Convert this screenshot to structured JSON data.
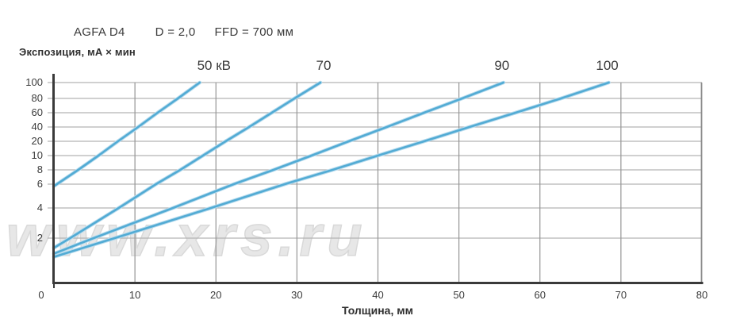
{
  "header": {
    "film": "AGFA D4",
    "density": "D = 2,0",
    "ffd": "FFD = 700 мм"
  },
  "y_axis": {
    "title": "Экспозиция, мА × мин",
    "ticks": [
      100,
      80,
      60,
      40,
      20,
      10,
      8,
      6,
      4,
      2
    ]
  },
  "x_axis": {
    "title": "Толщина, мм",
    "ticks": [
      0,
      10,
      20,
      30,
      40,
      50,
      60,
      70,
      80
    ]
  },
  "watermark": "www.xrs.ru",
  "colors": {
    "curve": "#52abd4",
    "curve_halo": "#b9dcee",
    "axis": "#3a3a3a",
    "grid_h": "#b3b3b3",
    "grid_v": "#969696",
    "plot_right_border": "#8a8a8a",
    "text": "#3b3b3b",
    "watermark": "#e7e7e7"
  },
  "chart_data": {
    "type": "line",
    "title": "AGFA D4 exposure chart (D = 2,0, FFD = 700 мм)",
    "xlabel": "Толщина, мм",
    "ylabel": "Экспозиция, мА × мин",
    "x_range": [
      0,
      80
    ],
    "y_ticks": [
      100,
      80,
      60,
      40,
      20,
      10,
      8,
      6,
      4,
      2
    ],
    "y_scale": "pseudo-log (ticks 100..10 evenly spaced, wider below 10)",
    "grid": true,
    "legend_position": "labels above plot at each curve's top exit",
    "series": [
      {
        "name": "50 кВ",
        "points": [
          [
            0,
            5.8
          ],
          [
            3,
            8
          ],
          [
            5.5,
            10
          ],
          [
            7.9,
            20
          ],
          [
            10.4,
            40
          ],
          [
            12.8,
            60
          ],
          [
            15.3,
            80
          ],
          [
            18,
            100
          ]
        ]
      },
      {
        "name": "70",
        "points": [
          [
            0,
            1.6
          ],
          [
            2,
            2
          ],
          [
            8,
            4
          ],
          [
            12.6,
            6
          ],
          [
            15.6,
            8
          ],
          [
            18.4,
            10
          ],
          [
            21.2,
            20
          ],
          [
            24.1,
            40
          ],
          [
            26.9,
            60
          ],
          [
            29.7,
            80
          ],
          [
            32.9,
            100
          ]
        ]
      },
      {
        "name": "90",
        "points": [
          [
            0,
            1.4
          ],
          [
            4.9,
            2
          ],
          [
            14.7,
            4
          ],
          [
            22.2,
            6
          ],
          [
            27.1,
            8
          ],
          [
            31.8,
            10
          ],
          [
            36.4,
            20
          ],
          [
            41.1,
            40
          ],
          [
            45.7,
            60
          ],
          [
            50.4,
            80
          ],
          [
            55.5,
            100
          ]
        ]
      },
      {
        "name": "100",
        "points": [
          [
            0,
            1.3
          ],
          [
            7.5,
            2
          ],
          [
            19.4,
            4
          ],
          [
            28.5,
            6
          ],
          [
            34.4,
            8
          ],
          [
            40,
            10
          ],
          [
            45.7,
            20
          ],
          [
            51.3,
            40
          ],
          [
            57,
            60
          ],
          [
            62.6,
            80
          ],
          [
            68.5,
            100
          ]
        ]
      }
    ]
  }
}
